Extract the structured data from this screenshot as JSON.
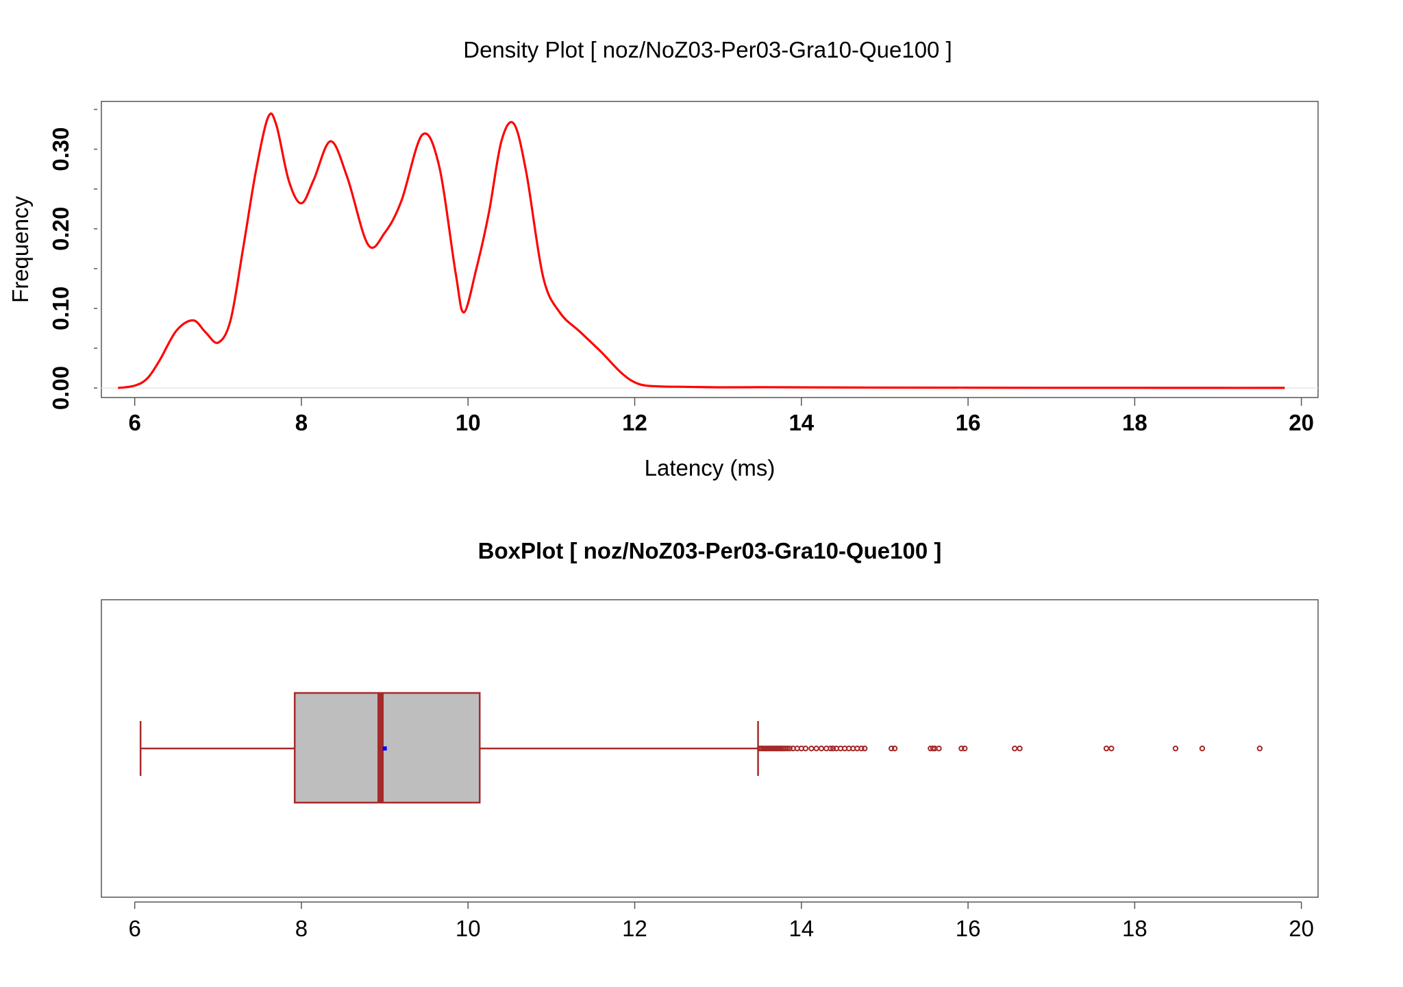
{
  "colors": {
    "density_line": "#ff0000",
    "box_border": "#a52a2a",
    "box_fill": "#bebebe",
    "median": "#a52a2a",
    "mean_marker": "#0000ff",
    "outlier": "#a52a2a",
    "frame": "#555555"
  },
  "chart_data": [
    {
      "type": "line",
      "title": "Density Plot [ noz/NoZ03-Per03-Gra10-Que100 ]",
      "xlabel": "Latency (ms)",
      "ylabel": "Frequency",
      "xlim": [
        5.6,
        20.2
      ],
      "ylim": [
        -0.012,
        0.36
      ],
      "x_ticks": [
        6,
        8,
        10,
        12,
        14,
        16,
        18,
        20
      ],
      "x_tick_labels": [
        "6",
        "8",
        "10",
        "12",
        "14",
        "16",
        "18",
        "20"
      ],
      "y_ticks": [
        0.0,
        0.1,
        0.2,
        0.3
      ],
      "y_tick_labels": [
        "0.00",
        "0.10",
        "0.20",
        "0.30"
      ],
      "y_minor_ticks": [
        0.05,
        0.15,
        0.25,
        0.35
      ],
      "grid": false,
      "series": [
        {
          "x": [
            5.8,
            6.0,
            6.15,
            6.3,
            6.5,
            6.7,
            6.85,
            7.0,
            7.15,
            7.3,
            7.45,
            7.6,
            7.7,
            7.85,
            8.0,
            8.15,
            8.35,
            8.55,
            8.8,
            9.0,
            9.2,
            9.45,
            9.65,
            9.85,
            9.95,
            10.1,
            10.25,
            10.4,
            10.55,
            10.7,
            10.9,
            11.1,
            11.35,
            11.6,
            11.85,
            12.05,
            12.3,
            12.6,
            13.0,
            13.5,
            14.0,
            15.0,
            16.0,
            17.0,
            18.0,
            19.0,
            19.8
          ],
          "y": [
            0.0,
            0.003,
            0.012,
            0.035,
            0.072,
            0.085,
            0.07,
            0.057,
            0.085,
            0.175,
            0.27,
            0.34,
            0.33,
            0.26,
            0.232,
            0.262,
            0.31,
            0.265,
            0.18,
            0.195,
            0.235,
            0.318,
            0.28,
            0.145,
            0.095,
            0.15,
            0.22,
            0.31,
            0.332,
            0.27,
            0.14,
            0.095,
            0.07,
            0.045,
            0.018,
            0.005,
            0.002,
            0.0015,
            0.0008,
            0.001,
            0.0008,
            0.0005,
            0.0004,
            0.0002,
            0.0002,
            0.0001,
            0.0001
          ]
        }
      ]
    },
    {
      "type": "box",
      "title": "BoxPlot [ noz/NoZ03-Per03-Gra10-Que100 ]",
      "orientation": "horizontal",
      "xlim": [
        5.6,
        20.2
      ],
      "x_ticks": [
        6,
        8,
        10,
        12,
        14,
        16,
        18,
        20
      ],
      "x_tick_labels": [
        "6",
        "8",
        "10",
        "12",
        "14",
        "16",
        "18",
        "20"
      ],
      "whisker_low": 6.07,
      "q1": 7.92,
      "median": 8.95,
      "mean": 9.0,
      "q3": 10.14,
      "whisker_high": 13.48,
      "outliers": [
        13.5,
        13.52,
        13.54,
        13.56,
        13.58,
        13.6,
        13.62,
        13.64,
        13.66,
        13.68,
        13.7,
        13.72,
        13.74,
        13.76,
        13.78,
        13.8,
        13.83,
        13.86,
        13.9,
        13.95,
        14.0,
        14.05,
        14.12,
        14.18,
        14.24,
        14.3,
        14.35,
        14.38,
        14.42,
        14.47,
        14.52,
        14.57,
        14.62,
        14.67,
        14.72,
        14.76,
        15.08,
        15.12,
        15.55,
        15.58,
        15.6,
        15.65,
        15.92,
        15.96,
        16.56,
        16.62,
        17.66,
        17.72,
        18.49,
        18.81,
        19.5
      ]
    }
  ]
}
